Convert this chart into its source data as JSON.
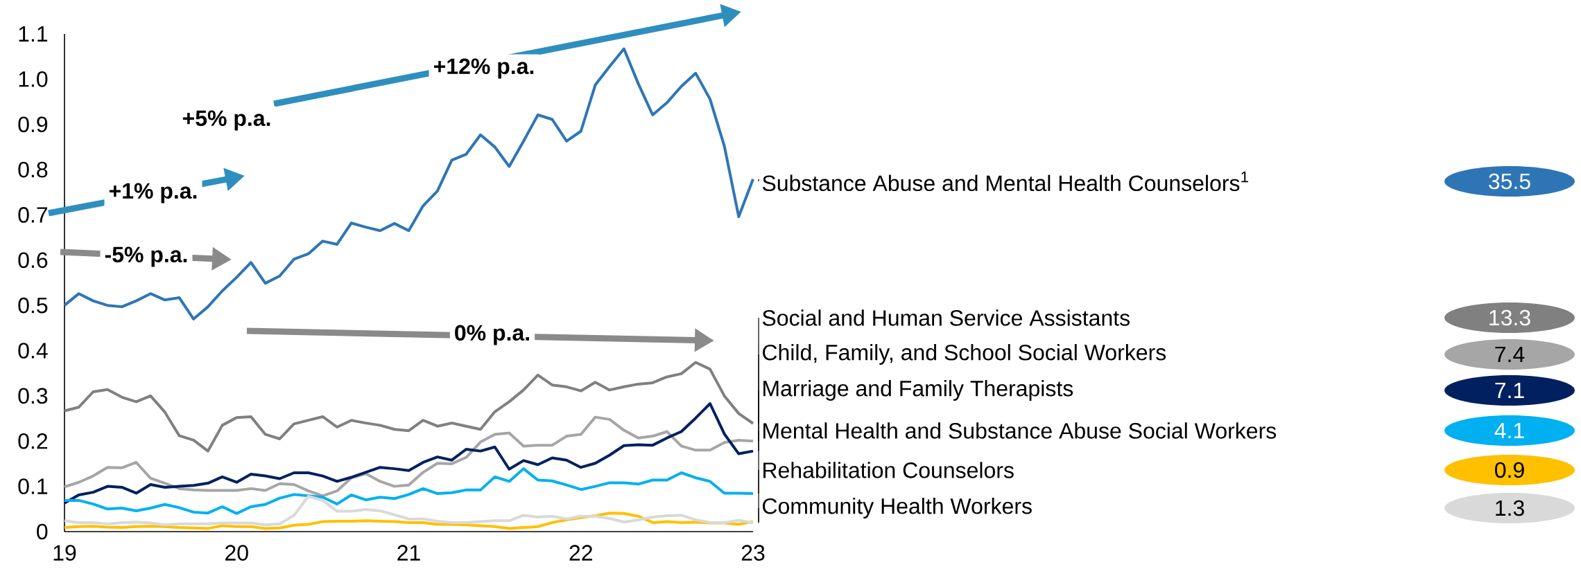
{
  "chart_data": {
    "type": "line",
    "x": [
      19,
      19.0833,
      19.1667,
      19.25,
      19.3333,
      19.4167,
      19.5,
      19.5833,
      19.6667,
      19.75,
      19.8333,
      19.9167,
      20,
      20.0833,
      20.1667,
      20.25,
      20.3333,
      20.4167,
      20.5,
      20.5833,
      20.6667,
      20.75,
      20.8333,
      20.9167,
      21,
      21.0833,
      21.1667,
      21.25,
      21.3333,
      21.4167,
      21.5,
      21.5833,
      21.6667,
      21.75,
      21.8333,
      21.9167,
      22,
      22.0833,
      22.1667,
      22.25,
      22.3333,
      22.4167,
      22.5,
      22.5833,
      22.6667,
      22.75,
      22.8333,
      22.9167,
      23
    ],
    "series": [
      {
        "name": "Substance Abuse and Mental Health Counselors$^{1}$",
        "color": "#2e75b6",
        "values": [
          0.5,
          0.526,
          0.51,
          0.5,
          0.497,
          0.51,
          0.526,
          0.512,
          0.517,
          0.47,
          0.497,
          0.532,
          0.562,
          0.595,
          0.549,
          0.565,
          0.602,
          0.614,
          0.642,
          0.635,
          0.682,
          0.673,
          0.665,
          0.681,
          0.665,
          0.72,
          0.753,
          0.821,
          0.834,
          0.877,
          0.85,
          0.807,
          0.863,
          0.921,
          0.911,
          0.863,
          0.885,
          0.987,
          1.028,
          1.067,
          0.99,
          0.921,
          0.948,
          0.984,
          1.013,
          0.956,
          0.852,
          0.696,
          0.779
        ]
      },
      {
        "name": "Social and Human Service Assistants",
        "color": "#808080",
        "values": [
          0.267,
          0.275,
          0.309,
          0.314,
          0.297,
          0.287,
          0.3,
          0.264,
          0.212,
          0.202,
          0.178,
          0.235,
          0.252,
          0.254,
          0.215,
          0.205,
          0.238,
          0.246,
          0.254,
          0.231,
          0.246,
          0.24,
          0.235,
          0.226,
          0.223,
          0.246,
          0.233,
          0.24,
          0.233,
          0.226,
          0.265,
          0.287,
          0.313,
          0.346,
          0.324,
          0.32,
          0.311,
          0.33,
          0.313,
          0.32,
          0.326,
          0.329,
          0.342,
          0.349,
          0.374,
          0.359,
          0.3,
          0.261,
          0.239
        ]
      },
      {
        "name": "Child, Family, and School Social Workers",
        "color": "#a6a6a6",
        "values": [
          0.099,
          0.109,
          0.123,
          0.142,
          0.141,
          0.153,
          0.118,
          0.107,
          0.095,
          0.092,
          0.091,
          0.091,
          0.091,
          0.095,
          0.091,
          0.106,
          0.104,
          0.09,
          0.079,
          0.09,
          0.119,
          0.128,
          0.111,
          0.1,
          0.103,
          0.131,
          0.151,
          0.15,
          0.164,
          0.198,
          0.215,
          0.218,
          0.189,
          0.191,
          0.191,
          0.211,
          0.215,
          0.253,
          0.248,
          0.224,
          0.207,
          0.211,
          0.221,
          0.189,
          0.18,
          0.18,
          0.197,
          0.202,
          0.2
        ]
      },
      {
        "name": "Marriage and Family Therapists",
        "color": "#002060",
        "values": [
          0.063,
          0.081,
          0.087,
          0.1,
          0.098,
          0.085,
          0.104,
          0.098,
          0.1,
          0.102,
          0.107,
          0.121,
          0.109,
          0.127,
          0.123,
          0.117,
          0.13,
          0.13,
          0.123,
          0.111,
          0.12,
          0.131,
          0.142,
          0.139,
          0.135,
          0.153,
          0.165,
          0.158,
          0.182,
          0.178,
          0.187,
          0.138,
          0.157,
          0.148,
          0.163,
          0.158,
          0.142,
          0.151,
          0.169,
          0.19,
          0.192,
          0.191,
          0.207,
          0.221,
          0.251,
          0.283,
          0.216,
          0.172,
          0.178
        ]
      },
      {
        "name": "Mental Health and Substance Abuse Social Workers",
        "color": "#00b0f0",
        "values": [
          0.069,
          0.069,
          0.061,
          0.05,
          0.052,
          0.046,
          0.052,
          0.06,
          0.053,
          0.043,
          0.041,
          0.055,
          0.04,
          0.055,
          0.06,
          0.074,
          0.082,
          0.079,
          0.076,
          0.061,
          0.081,
          0.07,
          0.076,
          0.073,
          0.082,
          0.095,
          0.084,
          0.086,
          0.092,
          0.092,
          0.121,
          0.111,
          0.139,
          0.114,
          0.112,
          0.103,
          0.093,
          0.1,
          0.108,
          0.108,
          0.105,
          0.114,
          0.114,
          0.13,
          0.119,
          0.111,
          0.085,
          0.085,
          0.084
        ]
      },
      {
        "name": "Rehabilitation Counselors",
        "color": "#ffc000",
        "values": [
          0.009,
          0.011,
          0.012,
          0.01,
          0.009,
          0.011,
          0.012,
          0.011,
          0.009,
          0.008,
          0.007,
          0.013,
          0.011,
          0.011,
          0.007,
          0.008,
          0.014,
          0.016,
          0.022,
          0.023,
          0.023,
          0.024,
          0.023,
          0.022,
          0.02,
          0.02,
          0.016,
          0.016,
          0.015,
          0.013,
          0.011,
          0.007,
          0.009,
          0.011,
          0.02,
          0.026,
          0.031,
          0.035,
          0.041,
          0.04,
          0.034,
          0.02,
          0.022,
          0.02,
          0.021,
          0.019,
          0.019,
          0.016,
          0.022
        ]
      },
      {
        "name": "Community Health Workers",
        "color": "#d9d9d9",
        "values": [
          0.024,
          0.02,
          0.02,
          0.017,
          0.02,
          0.021,
          0.019,
          0.015,
          0.017,
          0.017,
          0.017,
          0.019,
          0.019,
          0.019,
          0.015,
          0.017,
          0.036,
          0.078,
          0.069,
          0.045,
          0.045,
          0.049,
          0.046,
          0.037,
          0.028,
          0.028,
          0.023,
          0.02,
          0.02,
          0.022,
          0.024,
          0.024,
          0.036,
          0.032,
          0.034,
          0.028,
          0.034,
          0.034,
          0.029,
          0.021,
          0.026,
          0.032,
          0.035,
          0.036,
          0.026,
          0.02,
          0.02,
          0.025,
          0.019
        ]
      }
    ],
    "annotations": [
      "+12% p.a.",
      "+5% p.a.",
      "+1% p.a.",
      "-5% p.a.",
      "0% p.a.",
      "35.5",
      "13.3",
      "7.4",
      "7.1",
      "4.1",
      "0.9",
      "1.3"
    ],
    "xlim": [
      19,
      23
    ],
    "xticks": [
      19,
      20,
      21,
      22,
      23
    ],
    "ylim": [
      0,
      1.1
    ],
    "yticks": [
      0,
      0.1,
      0.2,
      0.3,
      0.4,
      0.5,
      0.6,
      0.7,
      0.8,
      0.9,
      {
        "value": 1,
        "label": "1.0"
      },
      1.1
    ],
    "grid": false,
    "marker": "none",
    "line_style": "solid"
  }
}
